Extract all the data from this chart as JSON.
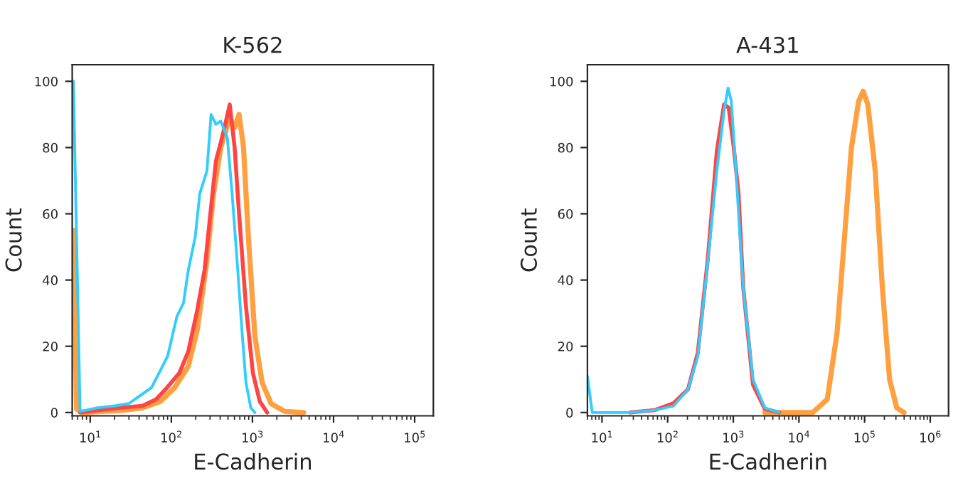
{
  "chart_data": [
    {
      "type": "line",
      "title": "K-562",
      "xlabel": "E-Cadherin",
      "ylabel": "Count",
      "log": "x",
      "grid": false,
      "xlim": [
        6,
        170000
      ],
      "ylim": [
        -1,
        105
      ],
      "xticks": [
        {
          "value": 10,
          "label": "10$^{1}$"
        },
        {
          "value": 100,
          "label": "10$^{2}$"
        },
        {
          "value": 1000,
          "label": "10$^{3}$"
        },
        {
          "value": 10000,
          "label": "10$^{4}$"
        },
        {
          "value": 100000,
          "label": "10$^{5}$"
        }
      ],
      "yticks": [
        0,
        20,
        40,
        60,
        80,
        100
      ],
      "series": [
        {
          "color": "#ffa040",
          "x": [
            6.2,
            6.8,
            8,
            26,
            44,
            74,
            110,
            162,
            209,
            275,
            331,
            407,
            525,
            603,
            684,
            776,
            891,
            1072,
            1318,
            1698,
            2512,
            4266
          ],
          "values": [
            55,
            1,
            0,
            0.7,
            1.4,
            3.4,
            7.5,
            14,
            25,
            46,
            66,
            80,
            89,
            86,
            90,
            80,
            53,
            23,
            9,
            2.7,
            0.3,
            0
          ]
        },
        {
          "color": "#ff4444",
          "x": [
            7.5,
            23,
            44,
            65,
            85,
            126,
            162,
            209,
            257,
            309,
            355,
            407,
            462,
            525,
            603,
            684,
            832,
            1012,
            1230,
            1514
          ],
          "values": [
            0,
            1.4,
            2,
            4,
            7,
            12,
            18.5,
            31,
            43,
            62,
            76,
            81.5,
            87,
            93,
            80,
            60,
            32,
            12,
            3.4,
            0
          ]
        },
        {
          "color": "#33ccff",
          "x": [
            6.2,
            7.5,
            12,
            20,
            30,
            38,
            57,
            90,
            117,
            141,
            162,
            197,
            224,
            275,
            309,
            355,
            407,
            490,
            562,
            646,
            741,
            832,
            955,
            1072
          ],
          "values": [
            100,
            0.3,
            1.4,
            2,
            2.7,
            4.5,
            7.5,
            17,
            29,
            33,
            43,
            53,
            66,
            73,
            90,
            87,
            88,
            83,
            66,
            46,
            25,
            9,
            1.4,
            0
          ]
        }
      ]
    },
    {
      "type": "line",
      "title": "A-431",
      "xlabel": "E-Cadherin",
      "ylabel": "Count",
      "log": "x",
      "grid": false,
      "xlim": [
        6,
        1900000
      ],
      "ylim": [
        -1,
        105
      ],
      "xticks": [
        {
          "value": 10,
          "label": "10$^{1}$"
        },
        {
          "value": 100,
          "label": "10$^{2}$"
        },
        {
          "value": 1000,
          "label": "10$^{3}$"
        },
        {
          "value": 10000,
          "label": "10$^{4}$"
        },
        {
          "value": 100000,
          "label": "10$^{5}$"
        },
        {
          "value": 1000000,
          "label": "10$^{6}$"
        }
      ],
      "yticks": [
        0,
        20,
        40,
        60,
        80,
        100
      ],
      "series": [
        {
          "color": "#ffa040",
          "x": [
            3020,
            5012,
            16200,
            27000,
            38000,
            49000,
            63000,
            81000,
            95000,
            112000,
            145000,
            186000,
            240000,
            309000,
            398000
          ],
          "values": [
            0,
            0,
            0,
            4,
            24,
            52,
            80,
            94,
            97,
            93,
            73,
            38,
            10,
            1.4,
            0
          ]
        },
        {
          "color": "#ff4444",
          "x": [
            27,
            63,
            123,
            204,
            288,
            407,
            562,
            724,
            851,
            1017,
            1202,
            1413,
            1995,
            3020,
            5012
          ],
          "values": [
            0,
            0.7,
            2.8,
            7,
            18,
            46,
            79,
            93,
            92,
            80,
            66,
            38,
            8.4,
            1.1,
            0
          ]
        },
        {
          "color": "#33ccff",
          "x": [
            6,
            7.1,
            27,
            63,
            123,
            204,
            288,
            407,
            562,
            724,
            832,
            933,
            1096,
            1413,
            1995,
            3020,
            5012
          ],
          "values": [
            11,
            0,
            0,
            0.7,
            2,
            7,
            17,
            45,
            73,
            91,
            98,
            94,
            73,
            38,
            10,
            1.4,
            0
          ]
        }
      ]
    }
  ]
}
